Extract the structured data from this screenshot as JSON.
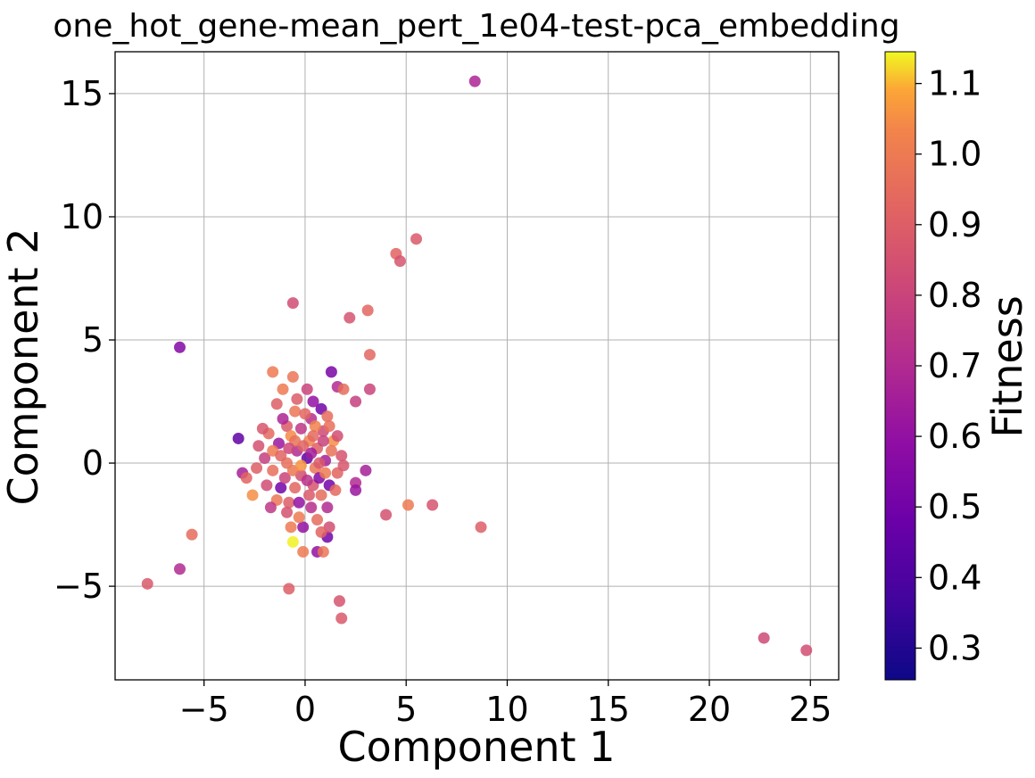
{
  "chart_data": {
    "type": "scatter",
    "title": "one_hot_gene-mean_pert_1e04-test-pca_embedding",
    "xlabel": "Component 1",
    "ylabel": "Component 2",
    "xlim": [
      -9.4,
      26.4
    ],
    "ylim": [
      -8.8,
      16.7
    ],
    "xticks": [
      -5,
      0,
      5,
      10,
      15,
      20,
      25
    ],
    "yticks": [
      -5,
      0,
      5,
      10,
      15
    ],
    "xtick_labels": [
      "−5",
      "0",
      "5",
      "10",
      "15",
      "20",
      "25"
    ],
    "ytick_labels": [
      "−5",
      "0",
      "5",
      "10",
      "15"
    ],
    "grid": true,
    "colorbar": {
      "label": "Fitness",
      "colormap": "plasma",
      "range": [
        0.255,
        1.145
      ],
      "ticks": [
        0.3,
        0.4,
        0.5,
        0.6,
        0.7,
        0.8,
        0.9,
        1.0,
        1.1
      ],
      "tick_labels": [
        "0.3",
        "0.4",
        "0.5",
        "0.6",
        "0.7",
        "0.8",
        "0.9",
        "1.0",
        "1.1"
      ]
    },
    "points": [
      {
        "x": 8.4,
        "y": 15.5,
        "c": 0.68
      },
      {
        "x": 5.5,
        "y": 9.1,
        "c": 0.88
      },
      {
        "x": 4.5,
        "y": 8.5,
        "c": 0.92
      },
      {
        "x": 4.7,
        "y": 8.2,
        "c": 0.86
      },
      {
        "x": -0.6,
        "y": 6.5,
        "c": 0.83
      },
      {
        "x": 2.2,
        "y": 5.9,
        "c": 0.86
      },
      {
        "x": 3.1,
        "y": 6.2,
        "c": 0.93
      },
      {
        "x": 3.2,
        "y": 4.4,
        "c": 0.93
      },
      {
        "x": -6.2,
        "y": 4.7,
        "c": 0.55
      },
      {
        "x": -1.6,
        "y": 3.7,
        "c": 1.0
      },
      {
        "x": -0.6,
        "y": 3.5,
        "c": 0.98
      },
      {
        "x": 1.3,
        "y": 3.7,
        "c": 0.52
      },
      {
        "x": 1.6,
        "y": 3.1,
        "c": 0.7
      },
      {
        "x": 1.9,
        "y": 3.0,
        "c": 0.95
      },
      {
        "x": 3.2,
        "y": 3.0,
        "c": 0.8
      },
      {
        "x": 2.5,
        "y": 2.5,
        "c": 0.78
      },
      {
        "x": -1.1,
        "y": 3.0,
        "c": 1.0
      },
      {
        "x": 0.1,
        "y": 3.0,
        "c": 0.8
      },
      {
        "x": -3.3,
        "y": 1.0,
        "c": 0.45
      },
      {
        "x": -3.1,
        "y": -0.4,
        "c": 0.66
      },
      {
        "x": -2.9,
        "y": -0.6,
        "c": 0.92
      },
      {
        "x": -2.6,
        "y": -1.3,
        "c": 1.05
      },
      {
        "x": 2.5,
        "y": -0.8,
        "c": 0.7
      },
      {
        "x": 2.5,
        "y": -1.1,
        "c": 0.62
      },
      {
        "x": 3.0,
        "y": -0.3,
        "c": 0.66
      },
      {
        "x": 4.0,
        "y": -2.1,
        "c": 0.85
      },
      {
        "x": 5.1,
        "y": -1.7,
        "c": 1.0
      },
      {
        "x": 6.3,
        "y": -1.7,
        "c": 0.86
      },
      {
        "x": 8.7,
        "y": -2.6,
        "c": 0.9
      },
      {
        "x": -5.6,
        "y": -2.9,
        "c": 0.95
      },
      {
        "x": -6.2,
        "y": -4.3,
        "c": 0.7
      },
      {
        "x": -7.8,
        "y": -4.9,
        "c": 0.88
      },
      {
        "x": -0.8,
        "y": -5.1,
        "c": 0.9
      },
      {
        "x": 1.7,
        "y": -5.6,
        "c": 0.86
      },
      {
        "x": 1.8,
        "y": -6.3,
        "c": 0.88
      },
      {
        "x": 0.6,
        "y": -3.6,
        "c": 0.6
      },
      {
        "x": 0.9,
        "y": -3.6,
        "c": 0.98
      },
      {
        "x": -0.1,
        "y": -3.6,
        "c": 1.0
      },
      {
        "x": -0.6,
        "y": -3.2,
        "c": 1.14
      },
      {
        "x": 1.1,
        "y": -3.0,
        "c": 0.5
      },
      {
        "x": 1.2,
        "y": -2.6,
        "c": 0.84
      },
      {
        "x": -0.1,
        "y": -2.6,
        "c": 0.6
      },
      {
        "x": 22.7,
        "y": -7.1,
        "c": 0.82
      },
      {
        "x": 24.8,
        "y": -7.6,
        "c": 0.84
      },
      {
        "x": -1.8,
        "y": 1.2,
        "c": 0.94
      },
      {
        "x": -0.9,
        "y": 1.5,
        "c": 0.88
      },
      {
        "x": 0.3,
        "y": 1.8,
        "c": 0.72
      },
      {
        "x": 0.8,
        "y": 2.2,
        "c": 0.5
      },
      {
        "x": 1.1,
        "y": 1.9,
        "c": 0.95
      },
      {
        "x": 0.4,
        "y": 2.5,
        "c": 0.6
      },
      {
        "x": -0.5,
        "y": 2.1,
        "c": 0.98
      },
      {
        "x": -1.4,
        "y": 2.4,
        "c": 0.9
      },
      {
        "x": -2.3,
        "y": 0.7,
        "c": 0.85
      },
      {
        "x": -2.0,
        "y": 0.2,
        "c": 0.78
      },
      {
        "x": -1.6,
        "y": -0.3,
        "c": 0.96
      },
      {
        "x": -1.2,
        "y": -1.0,
        "c": 0.5
      },
      {
        "x": -0.8,
        "y": -1.6,
        "c": 0.9
      },
      {
        "x": -0.3,
        "y": -2.2,
        "c": 1.0
      },
      {
        "x": 0.3,
        "y": -1.8,
        "c": 0.72
      },
      {
        "x": 0.8,
        "y": -1.3,
        "c": 0.95
      },
      {
        "x": 1.2,
        "y": -0.9,
        "c": 0.5
      },
      {
        "x": 1.6,
        "y": -0.4,
        "c": 0.92
      },
      {
        "x": 1.8,
        "y": 0.3,
        "c": 0.86
      },
      {
        "x": 1.4,
        "y": 0.9,
        "c": 1.05
      },
      {
        "x": 0.9,
        "y": 1.3,
        "c": 0.82
      },
      {
        "x": 0.2,
        "y": 0.9,
        "c": 1.02
      },
      {
        "x": -0.4,
        "y": 0.5,
        "c": 0.7
      },
      {
        "x": -0.9,
        "y": 0.0,
        "c": 0.96
      },
      {
        "x": -0.2,
        "y": -0.5,
        "c": 0.84
      },
      {
        "x": 0.5,
        "y": -0.2,
        "c": 0.98
      },
      {
        "x": 0.1,
        "y": 0.2,
        "c": 0.45
      },
      {
        "x": -1.3,
        "y": 0.8,
        "c": 0.62
      },
      {
        "x": -0.7,
        "y": 1.1,
        "c": 1.04
      },
      {
        "x": 0.6,
        "y": 0.6,
        "c": 0.9
      },
      {
        "x": 1.0,
        "y": 0.1,
        "c": 0.66
      },
      {
        "x": -0.5,
        "y": -1.0,
        "c": 0.93
      },
      {
        "x": 0.4,
        "y": -0.9,
        "c": 0.86
      },
      {
        "x": -1.0,
        "y": -0.6,
        "c": 0.8
      },
      {
        "x": 1.3,
        "y": 0.5,
        "c": 0.97
      },
      {
        "x": -1.6,
        "y": 0.5,
        "c": 1.0
      },
      {
        "x": -0.2,
        "y": 1.4,
        "c": 0.75
      },
      {
        "x": 0.7,
        "y": -0.6,
        "c": 0.55
      },
      {
        "x": -0.6,
        "y": -0.3,
        "c": 0.99
      },
      {
        "x": 0.2,
        "y": -1.3,
        "c": 0.88
      },
      {
        "x": -1.9,
        "y": -0.9,
        "c": 0.83
      },
      {
        "x": 1.5,
        "y": -1.1,
        "c": 0.94
      },
      {
        "x": -0.1,
        "y": 0.7,
        "c": 0.91
      },
      {
        "x": 0.9,
        "y": 0.9,
        "c": 0.79
      },
      {
        "x": -1.1,
        "y": 1.8,
        "c": 0.68
      },
      {
        "x": 0.5,
        "y": 1.5,
        "c": 1.02
      },
      {
        "x": 1.9,
        "y": -0.1,
        "c": 0.87
      },
      {
        "x": -2.4,
        "y": -0.2,
        "c": 0.9
      },
      {
        "x": -0.3,
        "y": -1.6,
        "c": 0.6
      },
      {
        "x": 0.6,
        "y": -2.3,
        "c": 0.95
      },
      {
        "x": -0.9,
        "y": -2.0,
        "c": 0.85
      },
      {
        "x": 1.1,
        "y": -1.8,
        "c": 0.7
      },
      {
        "x": -1.4,
        "y": -1.5,
        "c": 0.98
      },
      {
        "x": 0.0,
        "y": 2.0,
        "c": 0.93
      },
      {
        "x": -0.4,
        "y": 2.6,
        "c": 0.89
      },
      {
        "x": 1.2,
        "y": 1.5,
        "c": 0.96
      },
      {
        "x": -2.1,
        "y": 1.4,
        "c": 0.87
      },
      {
        "x": -1.7,
        "y": -1.8,
        "c": 0.75
      },
      {
        "x": 0.8,
        "y": -2.8,
        "c": 0.92
      },
      {
        "x": -0.7,
        "y": -2.6,
        "c": 1.0
      },
      {
        "x": 1.6,
        "y": 1.1,
        "c": 0.84
      },
      {
        "x": -0.2,
        "y": -0.1,
        "c": 1.06
      },
      {
        "x": 0.3,
        "y": 0.4,
        "c": 0.65
      },
      {
        "x": -1.2,
        "y": 0.3,
        "c": 0.92
      },
      {
        "x": 0.7,
        "y": 0.0,
        "c": 0.88
      },
      {
        "x": -0.5,
        "y": 0.9,
        "c": 0.97
      },
      {
        "x": 0.1,
        "y": -0.7,
        "c": 0.73
      },
      {
        "x": 1.0,
        "y": -0.4,
        "c": 1.0
      },
      {
        "x": -0.8,
        "y": 0.6,
        "c": 0.81
      },
      {
        "x": 0.4,
        "y": 1.1,
        "c": 0.94
      }
    ]
  }
}
